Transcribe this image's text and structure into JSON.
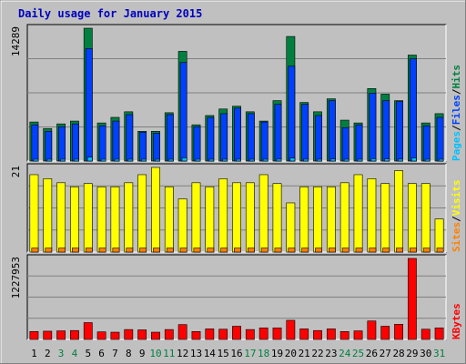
{
  "chart_data": {
    "type": "bar",
    "title": "Daily usage for January 2015",
    "categories": [
      "1",
      "2",
      "3",
      "4",
      "5",
      "6",
      "7",
      "8",
      "9",
      "10",
      "11",
      "12",
      "13",
      "14",
      "15",
      "16",
      "17",
      "18",
      "19",
      "20",
      "21",
      "22",
      "23",
      "24",
      "25",
      "26",
      "27",
      "28",
      "29",
      "30",
      "31"
    ],
    "weekend_days": [
      "3",
      "4",
      "10",
      "11",
      "17",
      "18",
      "24",
      "25",
      "31"
    ],
    "colors": {
      "hits": "#008040",
      "files": "#0040ff",
      "pages": "#00c0ff",
      "visits": "#ffff00",
      "sites": "#ff8000",
      "kbytes": "#ff0000",
      "title": "#0000c0",
      "day": "#000000",
      "weekend_day": "#008040"
    },
    "panels": [
      {
        "id": "hits-files-pages",
        "ymax_label": "14289",
        "ylim": [
          0,
          14289
        ],
        "legend": [
          "Pages",
          "Files",
          "Hits"
        ],
        "series": [
          {
            "name": "Hits",
            "values": [
              4200,
              3500,
              4000,
              4300,
              14289,
              4100,
              4700,
              5300,
              3200,
              3200,
              5200,
              11800,
              3900,
              4900,
              5600,
              5900,
              5300,
              4300,
              6500,
              13400,
              6300,
              5300,
              6700,
              4400,
              4100,
              7800,
              7200,
              6500,
              11400,
              4100,
              5100
            ]
          },
          {
            "name": "Files",
            "values": [
              3900,
              3200,
              3700,
              4000,
              12100,
              3800,
              4300,
              5000,
              3100,
              3000,
              5000,
              10600,
              3700,
              4700,
              5100,
              5700,
              5100,
              4200,
              6100,
              10200,
              6100,
              4900,
              6500,
              3600,
              3900,
              7300,
              6500,
              6400,
              11000,
              3800,
              4700
            ]
          },
          {
            "name": "Pages",
            "values": [
              150,
              120,
              140,
              150,
              420,
              140,
              160,
              190,
              110,
              110,
              170,
              350,
              130,
              170,
              180,
              190,
              170,
              140,
              210,
              320,
              200,
              170,
              220,
              130,
              130,
              250,
              230,
              210,
              340,
              140,
              160
            ]
          }
        ]
      },
      {
        "id": "visits-sites",
        "ymax_label": "21",
        "ylim": [
          0,
          21
        ],
        "legend": [
          "Sites",
          "Visits"
        ],
        "series": [
          {
            "name": "Visits",
            "values": [
              19.2,
              18.2,
              17.2,
              16.2,
              17.0,
              16.2,
              16.2,
              17.2,
              19.2,
              21.0,
              16.2,
              13.2,
              17.2,
              16.2,
              18.2,
              17.2,
              17.2,
              19.2,
              17.0,
              12.2,
              16.2,
              16.2,
              16.2,
              17.2,
              19.2,
              18.2,
              17.0,
              20.2,
              17.0,
              17.0,
              8.2
            ]
          },
          {
            "name": "Sites",
            "values": [
              1.0,
              1.0,
              1.0,
              1.0,
              1.0,
              1.0,
              1.0,
              1.0,
              1.0,
              1.0,
              1.0,
              1.0,
              1.0,
              1.0,
              1.0,
              1.0,
              1.0,
              1.0,
              1.0,
              1.0,
              1.0,
              1.0,
              1.0,
              1.0,
              1.0,
              1.0,
              1.0,
              1.0,
              1.0,
              1.0,
              1.0
            ]
          }
        ]
      },
      {
        "id": "kbytes",
        "ymax_label": "1227953",
        "ylim": [
          0,
          1227953
        ],
        "legend": [
          "KBytes"
        ],
        "series": [
          {
            "name": "KBytes",
            "values": [
              120000,
              125000,
              130000,
              135000,
              255000,
              115000,
              110000,
              150000,
              145000,
              110000,
              150000,
              225000,
              120000,
              160000,
              155000,
              200000,
              150000,
              175000,
              175000,
              290000,
              160000,
              135000,
              160000,
              120000,
              130000,
              280000,
              200000,
              230000,
              1227953,
              155000,
              175000
            ]
          }
        ]
      }
    ]
  }
}
